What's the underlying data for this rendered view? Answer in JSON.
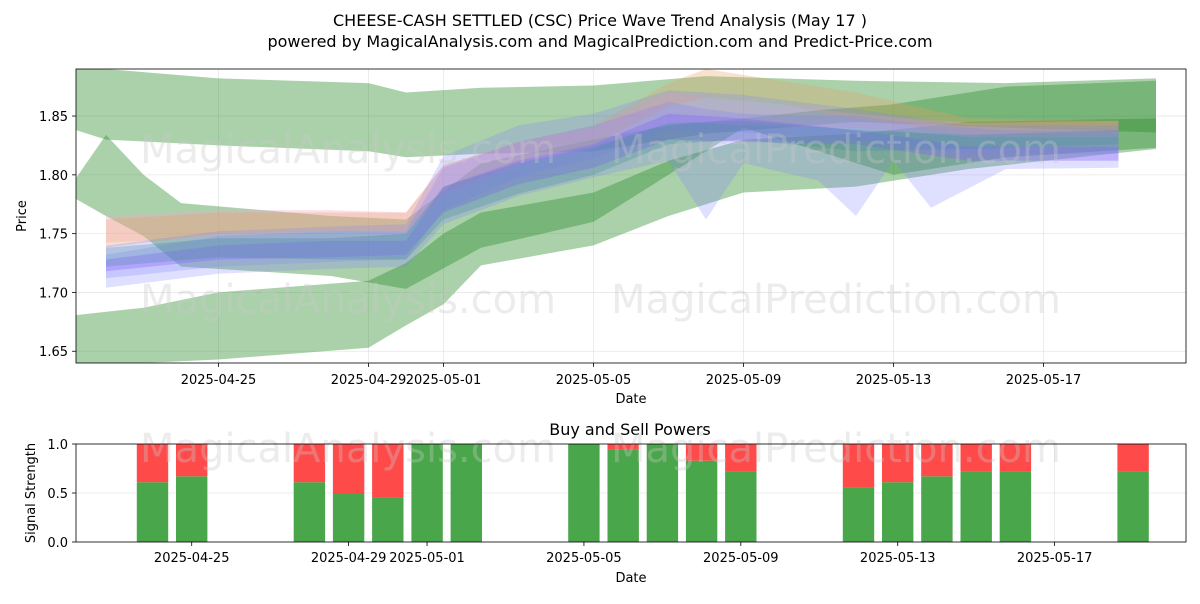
{
  "title_line1": "CHEESE-CASH SETTLED (CSC) Price Wave Trend Analysis (May 17 )",
  "title_line2": "powered by MagicalAnalysis.com and MagicalPrediction.com and Predict-Price.com",
  "watermark_left": "MagicalAnalysis.com",
  "watermark_right": "MagicalPrediction.com",
  "colors": {
    "buy": "#4aa64a",
    "sell": "#ff4a4a"
  },
  "chart_data": [
    {
      "type": "area",
      "title": "",
      "xlabel": "Date",
      "ylabel": "Price",
      "xlim": [
        "2025-04-21",
        "2025-05-20"
      ],
      "ylim": [
        1.64,
        1.89
      ],
      "x_ticks": [
        "2025-04-25",
        "2025-04-29",
        "2025-05-01",
        "2025-05-05",
        "2025-05-09",
        "2025-05-13",
        "2025-05-17"
      ],
      "y_ticks": [
        1.65,
        1.7,
        1.75,
        1.8,
        1.85
      ],
      "grid": true,
      "bands": [
        {
          "name": "green-wide-top",
          "color": "#2e8b2e",
          "opacity": 0.4,
          "x": [
            "2025-04-21",
            "2025-04-22",
            "2025-04-25",
            "2025-04-29",
            "2025-04-30",
            "2025-05-02",
            "2025-05-05",
            "2025-05-08",
            "2025-05-12",
            "2025-05-16",
            "2025-05-20"
          ],
          "lower": [
            1.84,
            1.83,
            1.825,
            1.82,
            1.815,
            1.818,
            1.82,
            1.835,
            1.845,
            1.84,
            1.836
          ],
          "upper": [
            1.895,
            1.89,
            1.882,
            1.878,
            1.87,
            1.874,
            1.876,
            1.884,
            1.88,
            1.878,
            1.882
          ]
        },
        {
          "name": "green-wide-bottom",
          "color": "#2e8b2e",
          "opacity": 0.4,
          "x": [
            "2025-04-21",
            "2025-04-23",
            "2025-04-25",
            "2025-04-29",
            "2025-04-30",
            "2025-05-01",
            "2025-05-02",
            "2025-05-05",
            "2025-05-07",
            "2025-05-09",
            "2025-05-12",
            "2025-05-15",
            "2025-05-20"
          ],
          "lower": [
            1.64,
            1.64,
            1.643,
            1.653,
            1.672,
            1.69,
            1.723,
            1.74,
            1.765,
            1.785,
            1.79,
            1.805,
            1.822
          ],
          "upper": [
            1.68,
            1.687,
            1.7,
            1.71,
            1.725,
            1.75,
            1.768,
            1.785,
            1.812,
            1.83,
            1.835,
            1.845,
            1.848
          ]
        },
        {
          "name": "green-wave",
          "color": "#2e8b2e",
          "opacity": 0.4,
          "x": [
            "2025-04-21",
            "2025-04-22",
            "2025-04-23",
            "2025-04-24",
            "2025-04-28",
            "2025-04-30",
            "2025-05-02",
            "2025-05-05",
            "2025-05-07",
            "2025-05-09",
            "2025-05-11",
            "2025-05-13",
            "2025-05-16",
            "2025-05-20"
          ],
          "lower": [
            1.783,
            1.765,
            1.748,
            1.722,
            1.714,
            1.703,
            1.738,
            1.76,
            1.8,
            1.84,
            1.82,
            1.8,
            1.815,
            1.823
          ],
          "upper": [
            1.788,
            1.834,
            1.8,
            1.776,
            1.765,
            1.762,
            1.81,
            1.83,
            1.842,
            1.848,
            1.855,
            1.86,
            1.875,
            1.88
          ]
        },
        {
          "name": "pink",
          "color": "#f4a6c8",
          "opacity": 0.35,
          "x": [
            "2025-04-22",
            "2025-04-25",
            "2025-04-28",
            "2025-04-30",
            "2025-05-01",
            "2025-05-03",
            "2025-05-05",
            "2025-05-07",
            "2025-05-09",
            "2025-05-12",
            "2025-05-15",
            "2025-05-19"
          ],
          "lower": [
            1.742,
            1.748,
            1.752,
            1.75,
            1.782,
            1.808,
            1.822,
            1.845,
            1.842,
            1.84,
            1.832,
            1.832
          ],
          "upper": [
            1.765,
            1.77,
            1.77,
            1.768,
            1.808,
            1.828,
            1.84,
            1.87,
            1.862,
            1.852,
            1.844,
            1.846
          ]
        },
        {
          "name": "orange",
          "color": "#e8a060",
          "opacity": 0.3,
          "x": [
            "2025-04-22",
            "2025-04-25",
            "2025-04-28",
            "2025-04-30",
            "2025-05-01",
            "2025-05-03",
            "2025-05-05",
            "2025-05-07",
            "2025-05-08",
            "2025-05-10",
            "2025-05-12",
            "2025-05-15",
            "2025-05-19"
          ],
          "lower": [
            1.738,
            1.75,
            1.752,
            1.752,
            1.785,
            1.81,
            1.826,
            1.858,
            1.866,
            1.86,
            1.848,
            1.834,
            1.834
          ],
          "upper": [
            1.762,
            1.768,
            1.768,
            1.768,
            1.808,
            1.828,
            1.842,
            1.878,
            1.89,
            1.88,
            1.87,
            1.848,
            1.846
          ]
        },
        {
          "name": "purple",
          "color": "#8a4fff",
          "opacity": 0.35,
          "x": [
            "2025-04-22",
            "2025-04-25",
            "2025-04-28",
            "2025-04-30",
            "2025-05-01",
            "2025-05-03",
            "2025-05-05",
            "2025-05-07",
            "2025-05-09",
            "2025-05-12",
            "2025-05-15",
            "2025-05-19"
          ],
          "lower": [
            1.718,
            1.728,
            1.73,
            1.732,
            1.768,
            1.792,
            1.806,
            1.83,
            1.828,
            1.826,
            1.812,
            1.812
          ],
          "upper": [
            1.728,
            1.74,
            1.744,
            1.744,
            1.79,
            1.812,
            1.826,
            1.852,
            1.848,
            1.838,
            1.824,
            1.824
          ]
        },
        {
          "name": "blue-1",
          "color": "#7f7fff",
          "opacity": 0.25,
          "x": [
            "2025-04-22",
            "2025-04-25",
            "2025-04-28",
            "2025-04-30",
            "2025-05-01",
            "2025-05-03",
            "2025-05-05",
            "2025-05-07",
            "2025-05-08",
            "2025-05-09",
            "2025-05-11",
            "2025-05-12",
            "2025-05-13",
            "2025-05-14",
            "2025-05-16",
            "2025-05-19"
          ],
          "lower": [
            1.704,
            1.716,
            1.72,
            1.722,
            1.758,
            1.782,
            1.798,
            1.812,
            1.762,
            1.81,
            1.795,
            1.765,
            1.812,
            1.772,
            1.805,
            1.806
          ],
          "upper": [
            1.732,
            1.748,
            1.752,
            1.752,
            1.806,
            1.828,
            1.842,
            1.862,
            1.856,
            1.852,
            1.85,
            1.85,
            1.846,
            1.842,
            1.838,
            1.838
          ]
        },
        {
          "name": "blue-2",
          "color": "#7f7fff",
          "opacity": 0.25,
          "x": [
            "2025-04-22",
            "2025-04-25",
            "2025-04-28",
            "2025-04-30",
            "2025-05-01",
            "2025-05-03",
            "2025-05-05",
            "2025-05-07",
            "2025-05-09",
            "2025-05-12",
            "2025-05-15",
            "2025-05-19"
          ],
          "lower": [
            1.712,
            1.722,
            1.726,
            1.728,
            1.77,
            1.798,
            1.814,
            1.838,
            1.836,
            1.83,
            1.818,
            1.818
          ],
          "upper": [
            1.74,
            1.752,
            1.756,
            1.758,
            1.816,
            1.842,
            1.852,
            1.872,
            1.868,
            1.856,
            1.842,
            1.842
          ]
        },
        {
          "name": "teal",
          "color": "#4a8aa0",
          "opacity": 0.3,
          "x": [
            "2025-04-22",
            "2025-04-25",
            "2025-04-28",
            "2025-04-30",
            "2025-05-01",
            "2025-05-03",
            "2025-05-05",
            "2025-05-07",
            "2025-05-09",
            "2025-05-12",
            "2025-05-15",
            "2025-05-19"
          ],
          "lower": [
            1.722,
            1.73,
            1.728,
            1.728,
            1.762,
            1.784,
            1.8,
            1.826,
            1.83,
            1.82,
            1.822,
            1.826
          ],
          "upper": [
            1.738,
            1.746,
            1.746,
            1.75,
            1.79,
            1.81,
            1.824,
            1.844,
            1.846,
            1.838,
            1.834,
            1.838
          ]
        }
      ]
    },
    {
      "type": "bar",
      "title": "Buy and Sell Powers",
      "xlabel": "Date",
      "ylabel": "Signal Strength",
      "xlim": [
        "2025-04-22",
        "2025-05-20"
      ],
      "ylim": [
        0,
        1.0
      ],
      "x_ticks": [
        "2025-04-25",
        "2025-04-29",
        "2025-05-01",
        "2025-05-05",
        "2025-05-09",
        "2025-05-13",
        "2025-05-17"
      ],
      "y_ticks": [
        "0.0",
        "0.5",
        "1.0"
      ],
      "grid": true,
      "categories": [
        "2025-04-24",
        "2025-04-25",
        "2025-04-28",
        "2025-04-29",
        "2025-04-30",
        "2025-05-01",
        "2025-05-02",
        "2025-05-05",
        "2025-05-06",
        "2025-05-07",
        "2025-05-08",
        "2025-05-09",
        "2025-05-12",
        "2025-05-13",
        "2025-05-14",
        "2025-05-15",
        "2025-05-16",
        "2025-05-19"
      ],
      "series": [
        {
          "name": "Buy",
          "values": [
            0.61,
            0.67,
            0.61,
            0.5,
            0.45,
            1.0,
            1.0,
            1.0,
            0.94,
            1.0,
            0.83,
            0.72,
            0.56,
            0.61,
            0.67,
            0.72,
            0.72,
            0.72
          ]
        },
        {
          "name": "Sell",
          "values": [
            0.39,
            0.33,
            0.39,
            0.5,
            0.55,
            0.0,
            0.0,
            0.0,
            0.06,
            0.0,
            0.17,
            0.28,
            0.44,
            0.39,
            0.33,
            0.28,
            0.28,
            0.28
          ]
        }
      ]
    }
  ]
}
